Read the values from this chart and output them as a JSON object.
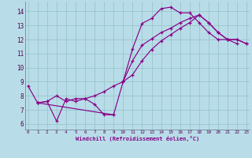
{
  "xlabel": "Windchill (Refroidissement éolien,°C)",
  "bg_color": "#b8dde8",
  "line_color": "#880088",
  "grid_color": "#99c4cc",
  "xlim": [
    -0.3,
    23.3
  ],
  "ylim": [
    5.6,
    14.7
  ],
  "yticks": [
    6,
    7,
    8,
    9,
    10,
    11,
    12,
    13,
    14
  ],
  "xticks": [
    0,
    1,
    2,
    3,
    4,
    5,
    6,
    7,
    8,
    9,
    10,
    11,
    12,
    13,
    14,
    15,
    16,
    17,
    18,
    19,
    20,
    21,
    22,
    23
  ],
  "s1x": [
    0,
    1,
    2,
    3,
    4,
    5,
    6,
    7,
    8,
    9
  ],
  "s1y": [
    8.7,
    7.5,
    7.6,
    6.2,
    7.8,
    7.6,
    7.8,
    7.4,
    6.65,
    6.65
  ],
  "s2x": [
    10,
    11,
    12,
    13,
    14,
    15,
    16,
    17,
    18,
    19,
    20,
    21,
    22
  ],
  "s2y": [
    9.0,
    11.35,
    13.15,
    13.5,
    14.2,
    14.3,
    13.9,
    13.9,
    13.2,
    12.5,
    12.0,
    12.0,
    11.7
  ],
  "s3x": [
    1,
    2,
    3,
    4,
    5,
    6,
    7,
    8,
    9,
    10,
    11,
    12,
    13,
    14,
    15,
    16,
    17,
    18,
    19,
    20,
    21,
    22,
    23
  ],
  "s3y": [
    7.5,
    7.6,
    8.0,
    7.6,
    7.8,
    7.8,
    8.0,
    8.3,
    8.7,
    9.0,
    9.5,
    10.5,
    11.3,
    11.9,
    12.35,
    12.8,
    13.2,
    13.75,
    13.2,
    12.5,
    12.0,
    12.0,
    11.7
  ],
  "s4x": [
    1,
    9,
    10,
    11,
    12,
    13,
    14,
    15,
    16,
    17,
    18,
    19,
    20,
    21,
    22,
    23
  ],
  "s4y": [
    7.5,
    6.65,
    9.0,
    10.5,
    11.6,
    12.05,
    12.5,
    12.8,
    13.2,
    13.5,
    13.75,
    13.2,
    12.5,
    12.0,
    12.0,
    11.7
  ]
}
